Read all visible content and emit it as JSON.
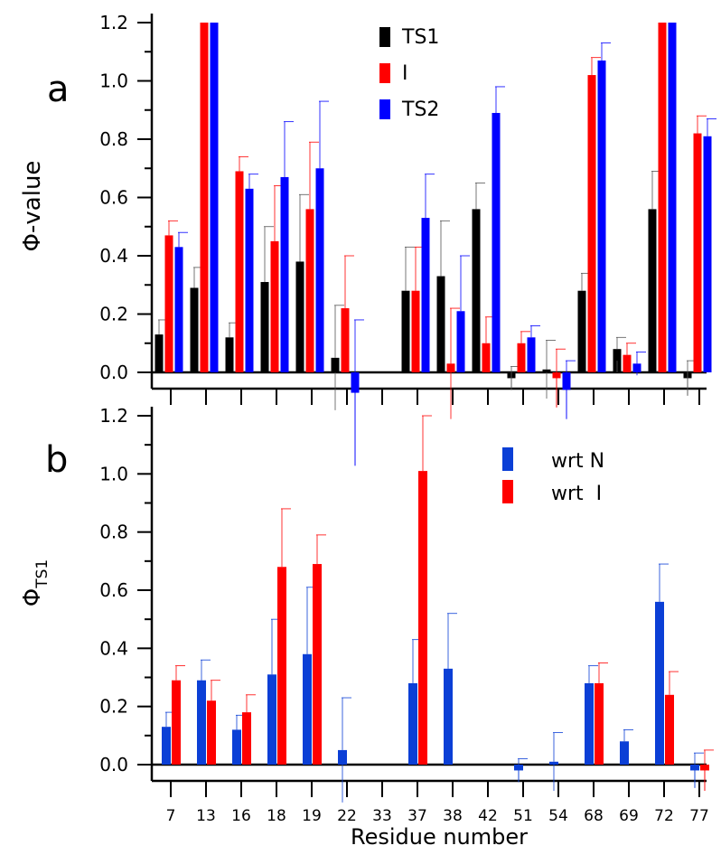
{
  "chart_data": [
    {
      "type": "bar",
      "panel_label": "a",
      "ylabel": "Φ-value",
      "ylim": [
        -0.05,
        1.2
      ],
      "yticks": [
        "0.0",
        "0.2",
        "0.4",
        "0.6",
        "0.8",
        "1.0",
        "1.2"
      ],
      "categories": [
        "7",
        "13",
        "16",
        "18",
        "19",
        "22",
        "33",
        "37",
        "38",
        "42",
        "51",
        "54",
        "68",
        "69",
        "72",
        "77"
      ],
      "legend_position": "top-center",
      "series": [
        {
          "name": "TS1",
          "color": "#000000",
          "values": [
            0.13,
            0.29,
            0.12,
            0.31,
            0.38,
            0.05,
            null,
            0.28,
            0.33,
            0.56,
            -0.02,
            0.01,
            0.28,
            0.08,
            0.56,
            -0.02
          ],
          "errors": [
            0.05,
            0.07,
            0.05,
            0.19,
            0.23,
            0.18,
            null,
            0.15,
            0.19,
            0.09,
            0.04,
            0.1,
            0.06,
            0.04,
            0.13,
            0.06
          ]
        },
        {
          "name": "I",
          "color": "#ff0000",
          "values": [
            0.47,
            1.2,
            0.69,
            0.45,
            0.56,
            0.22,
            null,
            0.28,
            0.03,
            0.1,
            0.1,
            -0.02,
            1.02,
            0.06,
            1.2,
            0.82
          ],
          "errors": [
            0.05,
            null,
            0.05,
            0.19,
            0.23,
            0.18,
            null,
            0.15,
            0.19,
            0.09,
            0.04,
            0.1,
            0.06,
            0.04,
            null,
            0.06
          ]
        },
        {
          "name": "TS2",
          "color": "#0000ff",
          "values": [
            0.43,
            1.2,
            0.63,
            0.67,
            0.7,
            -0.07,
            null,
            0.53,
            0.21,
            0.89,
            0.12,
            -0.06,
            1.07,
            0.03,
            1.2,
            0.81
          ],
          "errors": [
            0.05,
            null,
            0.05,
            0.19,
            0.23,
            0.25,
            null,
            0.15,
            0.19,
            0.09,
            0.04,
            0.1,
            0.06,
            0.04,
            null,
            0.06
          ]
        }
      ]
    },
    {
      "type": "bar",
      "panel_label": "b",
      "ylabel": "Φ",
      "ylabel_subscript": "TS1",
      "xlabel": "Residue number",
      "ylim": [
        -0.05,
        1.2
      ],
      "yticks": [
        "0.0",
        "0.2",
        "0.4",
        "0.6",
        "0.8",
        "1.0",
        "1.2"
      ],
      "categories": [
        "7",
        "13",
        "16",
        "18",
        "19",
        "22",
        "33",
        "37",
        "38",
        "42",
        "51",
        "54",
        "68",
        "69",
        "72",
        "77"
      ],
      "legend_position": "top-right",
      "series": [
        {
          "name": "wrt N",
          "color": "#0b3fd6",
          "values": [
            0.13,
            0.29,
            0.12,
            0.31,
            0.38,
            0.05,
            null,
            0.28,
            0.33,
            null,
            -0.02,
            0.01,
            0.28,
            0.08,
            0.56,
            -0.02
          ],
          "errors": [
            0.05,
            0.07,
            0.05,
            0.19,
            0.23,
            0.18,
            null,
            0.15,
            0.19,
            null,
            0.04,
            0.1,
            0.06,
            0.04,
            0.13,
            0.06
          ]
        },
        {
          "name": "wrt  I",
          "color": "#ff0000",
          "values": [
            0.29,
            0.22,
            0.18,
            0.68,
            0.69,
            null,
            null,
            1.01,
            null,
            null,
            null,
            null,
            0.28,
            null,
            0.24,
            -0.02
          ],
          "errors": [
            0.05,
            0.07,
            0.06,
            0.2,
            0.1,
            null,
            null,
            0.21,
            null,
            null,
            null,
            null,
            0.07,
            null,
            0.08,
            0.07
          ]
        }
      ]
    }
  ]
}
